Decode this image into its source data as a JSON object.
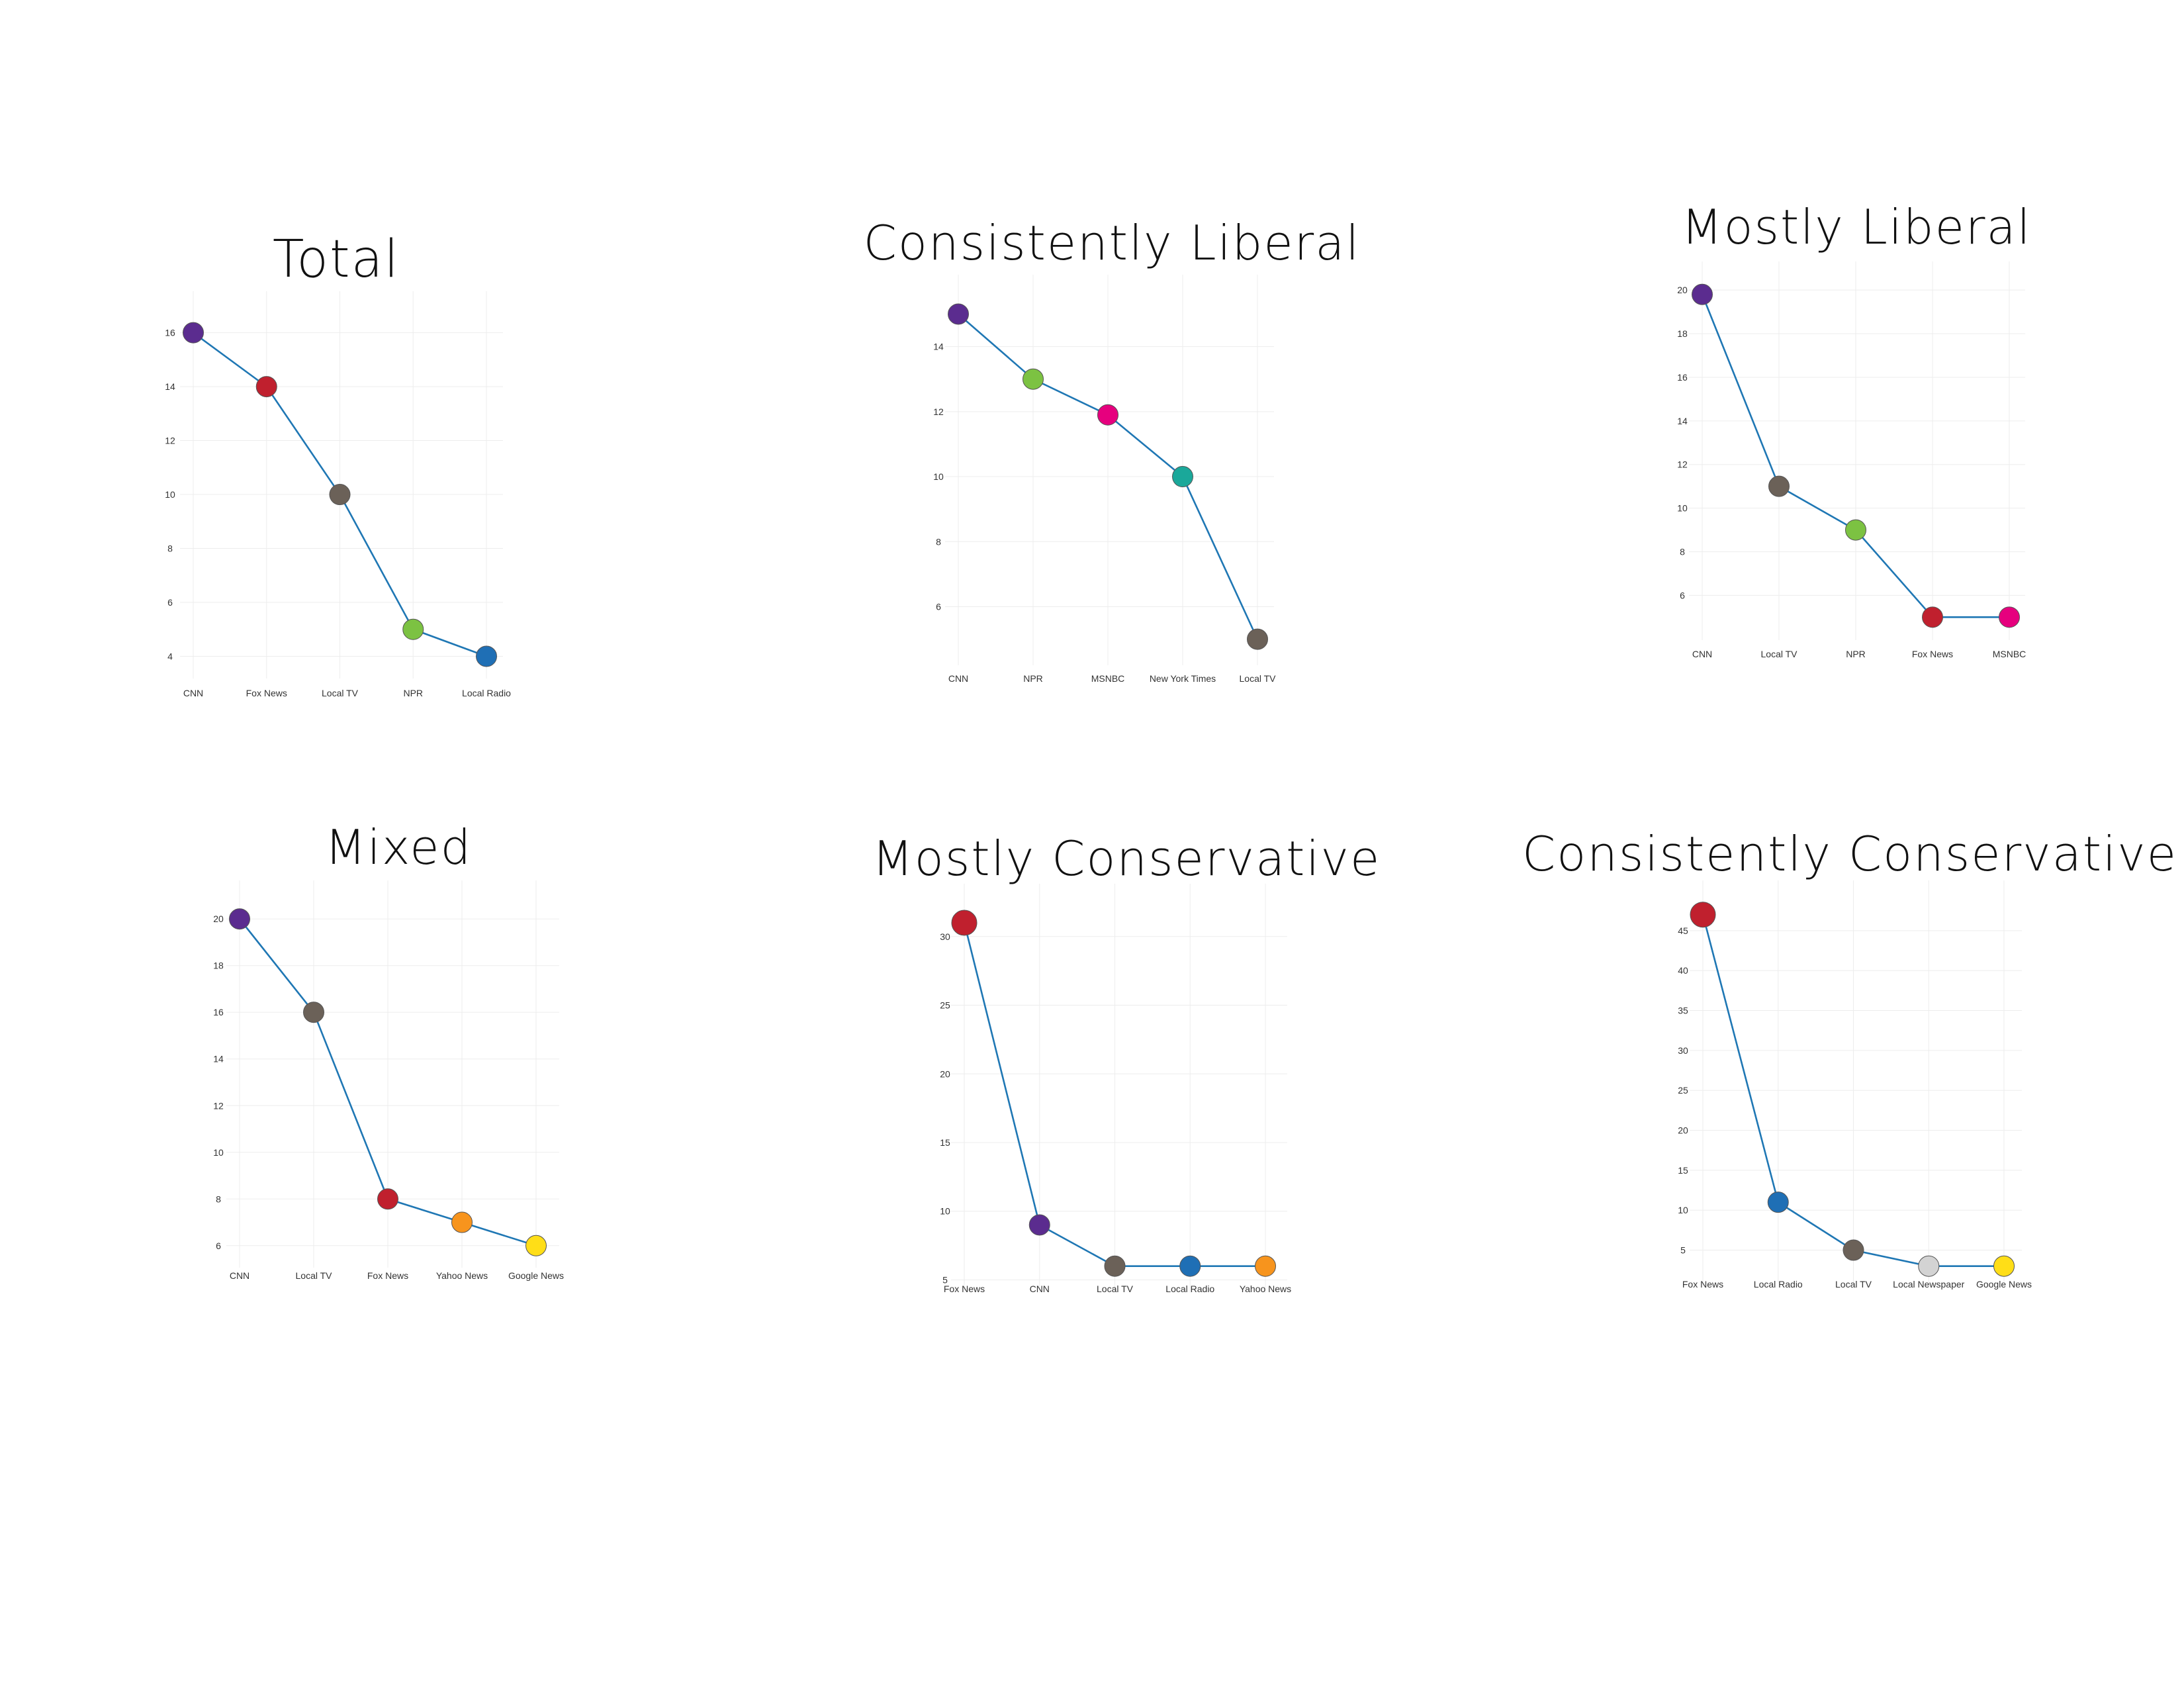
{
  "chart_data": [
    {
      "type": "line",
      "title": "Total",
      "categories": [
        "CNN",
        "Fox News",
        "Local TV",
        "NPR",
        "Local Radio"
      ],
      "values": [
        16,
        14,
        10,
        5,
        4
      ],
      "point_colors": [
        "#5b2c8f",
        "#c0202e",
        "#6b6158",
        "#7cc242",
        "#1f6fb5"
      ],
      "yticks": [
        4,
        6,
        8,
        10,
        12,
        14,
        16
      ],
      "ylim": [
        3.3,
        16.8
      ],
      "grid": true
    },
    {
      "type": "line",
      "title": "Consistently Liberal",
      "categories": [
        "CNN",
        "NPR",
        "MSNBC",
        "New York Times",
        "Local TV"
      ],
      "values": [
        15,
        13,
        11.9,
        10,
        5
      ],
      "point_colors": [
        "#5b2c8f",
        "#7cc242",
        "#e6007e",
        "#1aa89a",
        "#6b6158"
      ],
      "yticks": [
        6,
        8,
        10,
        12,
        14
      ],
      "ylim": [
        4.3,
        15.6
      ],
      "grid": true
    },
    {
      "type": "line",
      "title": "Mostly Liberal",
      "categories": [
        "CNN",
        "Local TV",
        "NPR",
        "Fox News",
        "MSNBC"
      ],
      "values": [
        19.8,
        11,
        9,
        5,
        5
      ],
      "point_colors": [
        "#5b2c8f",
        "#6b6158",
        "#7cc242",
        "#c0202e",
        "#e6007e"
      ],
      "yticks": [
        6,
        8,
        10,
        12,
        14,
        16,
        18,
        20
      ],
      "ylim": [
        4.1,
        20.4
      ],
      "grid": true
    },
    {
      "type": "line",
      "title": "Mixed",
      "categories": [
        "CNN",
        "Local TV",
        "Fox News",
        "Yahoo News",
        "Google News"
      ],
      "values": [
        20,
        16,
        8,
        7,
        6
      ],
      "point_colors": [
        "#5b2c8f",
        "#6b6158",
        "#c0202e",
        "#f7941d",
        "#ffde17"
      ],
      "yticks": [
        6,
        8,
        10,
        12,
        14,
        16,
        18,
        20
      ],
      "ylim": [
        5.2,
        20.8
      ],
      "grid": true
    },
    {
      "type": "line",
      "title": "Mostly Conservative",
      "categories": [
        "Fox News",
        "CNN",
        "Local TV",
        "Local Radio",
        "Yahoo News"
      ],
      "values": [
        31,
        9,
        6,
        6,
        6
      ],
      "point_colors": [
        "#c0202e",
        "#5b2c8f",
        "#6b6158",
        "#1f6fb5",
        "#f7941d"
      ],
      "yticks": [
        5,
        10,
        15,
        20,
        25,
        30
      ],
      "ylim": [
        4.3,
        32.4
      ],
      "grid": true
    },
    {
      "type": "line",
      "title": "Consistently Conservative",
      "categories": [
        "Fox News",
        "Local Radio",
        "Local TV",
        "Local Newspaper",
        "Google News"
      ],
      "values": [
        47,
        11,
        5,
        3,
        3
      ],
      "point_colors": [
        "#c0202e",
        "#1f6fb5",
        "#6b6158",
        "#d3d3d3",
        "#ffde17"
      ],
      "yticks": [
        5,
        10,
        15,
        20,
        25,
        30,
        35,
        40,
        45
      ],
      "ylim": [
        1.4,
        48.8
      ],
      "grid": true
    }
  ]
}
